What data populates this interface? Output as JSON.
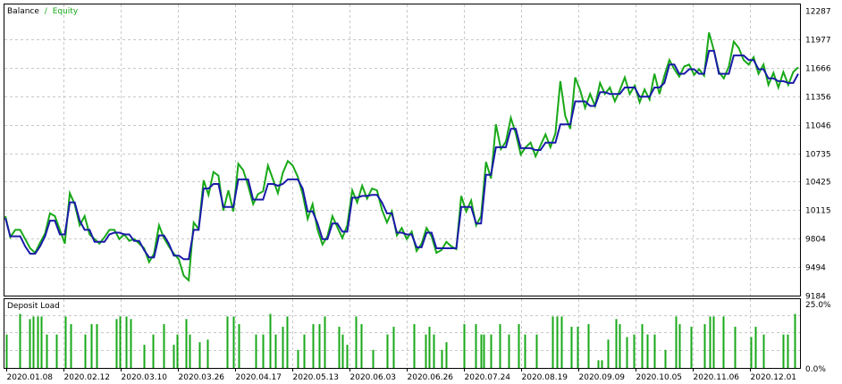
{
  "colors": {
    "balance": "#1a1aa8",
    "equity": "#18a818",
    "load": "#18a818",
    "grid": "#c8c8c8",
    "frame": "#000000",
    "text": "#000000"
  },
  "legend": {
    "balance_label": "Balance",
    "separator": "/",
    "equity_label": "Equity"
  },
  "load_panel": {
    "title": "Deposit Load",
    "ymax_label": "25.0%",
    "ymin_label": "0.0%"
  },
  "x_tick_labels": [
    "2020.01.08",
    "2020.02.12",
    "2020.03.10",
    "2020.03.26",
    "2020.04.17",
    "2020.05.13",
    "2020.06.03",
    "2020.06.26",
    "2020.07.24",
    "2020.08.19",
    "2020.09.09",
    "2020.10.05",
    "2020.11.06",
    "2020.12.01"
  ],
  "chart_data": [
    {
      "type": "line",
      "title": "Balance / Equity",
      "y_ticks": [
        12287,
        11977,
        11666,
        11356,
        11046,
        10735,
        10425,
        10115,
        9804,
        9494,
        9184
      ],
      "ylim": [
        9184,
        12287
      ],
      "grid": true,
      "legend": "top-left",
      "series": [
        {
          "name": "Balance",
          "values": [
            10030,
            9830,
            9830,
            9830,
            9720,
            9640,
            9640,
            9720,
            9830,
            10000,
            10000,
            9850,
            9850,
            10200,
            10200,
            10000,
            9900,
            9900,
            9770,
            9770,
            9770,
            9850,
            9870,
            9870,
            9850,
            9850,
            9780,
            9780,
            9680,
            9600,
            9600,
            9840,
            9840,
            9750,
            9620,
            9620,
            9580,
            9580,
            9900,
            9900,
            10350,
            10350,
            10400,
            10400,
            10150,
            10150,
            10150,
            10450,
            10450,
            10450,
            10230,
            10230,
            10230,
            10400,
            10400,
            10380,
            10400,
            10450,
            10450,
            10450,
            10350,
            10100,
            10100,
            9970,
            9800,
            9800,
            9970,
            9970,
            9880,
            9880,
            10250,
            10250,
            10270,
            10270,
            10280,
            10280,
            10200,
            10080,
            10080,
            9870,
            9870,
            9850,
            9850,
            9710,
            9710,
            9870,
            9870,
            9700,
            9700,
            9700,
            9700,
            9700,
            10150,
            10150,
            10150,
            9970,
            9970,
            10500,
            10500,
            10800,
            10800,
            10800,
            11000,
            11000,
            10790,
            10790,
            10790,
            10770,
            10770,
            10850,
            10850,
            10850,
            11050,
            11050,
            11050,
            11300,
            11300,
            11300,
            11250,
            11250,
            11400,
            11400,
            11380,
            11380,
            11380,
            11450,
            11450,
            11450,
            11350,
            11350,
            11350,
            11450,
            11450,
            11500,
            11700,
            11700,
            11600,
            11600,
            11650,
            11650,
            11600,
            11600,
            11850,
            11850,
            11600,
            11600,
            11600,
            11800,
            11800,
            11800,
            11750,
            11750,
            11650,
            11650,
            11550,
            11550,
            11520,
            11520,
            11500,
            11500,
            11600
          ]
        },
        {
          "name": "Equity",
          "values": [
            10050,
            9820,
            9900,
            9900,
            9800,
            9700,
            9650,
            9760,
            9860,
            10080,
            10050,
            9900,
            9750,
            10300,
            10180,
            9950,
            10050,
            9850,
            9800,
            9750,
            9820,
            9900,
            9900,
            9800,
            9850,
            9780,
            9800,
            9750,
            9700,
            9550,
            9640,
            9950,
            9810,
            9720,
            9640,
            9580,
            9400,
            9350,
            9980,
            9910,
            10440,
            10280,
            10530,
            10490,
            10110,
            10330,
            10100,
            10620,
            10550,
            10380,
            10180,
            10290,
            10320,
            10600,
            10450,
            10300,
            10520,
            10650,
            10600,
            10480,
            10290,
            10020,
            10180,
            9900,
            9740,
            9830,
            10050,
            9930,
            9810,
            9950,
            10330,
            10200,
            10380,
            10240,
            10350,
            10330,
            10120,
            9980,
            10100,
            9840,
            9920,
            9800,
            9880,
            9670,
            9750,
            9920,
            9830,
            9650,
            9680,
            9770,
            9720,
            9690,
            10270,
            10100,
            10220,
            9950,
            10050,
            10640,
            10460,
            11050,
            10780,
            10860,
            11120,
            10950,
            10720,
            10800,
            10850,
            10700,
            10820,
            10940,
            10800,
            10950,
            11520,
            11140,
            11000,
            11560,
            11420,
            11230,
            11380,
            11250,
            11500,
            11380,
            11450,
            11300,
            11420,
            11560,
            11380,
            11470,
            11290,
            11430,
            11320,
            11600,
            11380,
            11580,
            11750,
            11650,
            11570,
            11680,
            11700,
            11590,
            11650,
            11580,
            12050,
            11850,
            11620,
            11550,
            11680,
            11950,
            11880,
            11750,
            11700,
            11780,
            11600,
            11700,
            11480,
            11610,
            11450,
            11620,
            11480,
            11620,
            11670
          ]
        }
      ]
    },
    {
      "type": "bar",
      "title": "Deposit Load",
      "y_ticks_label": [
        "0.0%",
        "25.0%"
      ],
      "ylim": [
        0,
        25
      ],
      "bars": [
        {
          "t": 0.001,
          "v": 13
        },
        {
          "t": 0.018,
          "v": 21
        },
        {
          "t": 0.03,
          "v": 19
        },
        {
          "t": 0.035,
          "v": 20
        },
        {
          "t": 0.041,
          "v": 20
        },
        {
          "t": 0.045,
          "v": 20
        },
        {
          "t": 0.052,
          "v": 13
        },
        {
          "t": 0.064,
          "v": 13
        },
        {
          "t": 0.075,
          "v": 20
        },
        {
          "t": 0.082,
          "v": 17
        },
        {
          "t": 0.1,
          "v": 13
        },
        {
          "t": 0.108,
          "v": 17
        },
        {
          "t": 0.115,
          "v": 17
        },
        {
          "t": 0.14,
          "v": 19
        },
        {
          "t": 0.144,
          "v": 20
        },
        {
          "t": 0.152,
          "v": 20
        },
        {
          "t": 0.158,
          "v": 19
        },
        {
          "t": 0.175,
          "v": 9
        },
        {
          "t": 0.186,
          "v": 13
        },
        {
          "t": 0.2,
          "v": 17
        },
        {
          "t": 0.212,
          "v": 9
        },
        {
          "t": 0.217,
          "v": 13
        },
        {
          "t": 0.228,
          "v": 19
        },
        {
          "t": 0.232,
          "v": 13
        },
        {
          "t": 0.245,
          "v": 10
        },
        {
          "t": 0.255,
          "v": 11
        },
        {
          "t": 0.28,
          "v": 20
        },
        {
          "t": 0.287,
          "v": 20
        },
        {
          "t": 0.294,
          "v": 17
        },
        {
          "t": 0.316,
          "v": 13
        },
        {
          "t": 0.325,
          "v": 13
        },
        {
          "t": 0.334,
          "v": 21
        },
        {
          "t": 0.341,
          "v": 13
        },
        {
          "t": 0.35,
          "v": 16
        },
        {
          "t": 0.355,
          "v": 20
        },
        {
          "t": 0.369,
          "v": 7
        },
        {
          "t": 0.377,
          "v": 13
        },
        {
          "t": 0.388,
          "v": 17
        },
        {
          "t": 0.396,
          "v": 17
        },
        {
          "t": 0.403,
          "v": 20
        },
        {
          "t": 0.42,
          "v": 16
        },
        {
          "t": 0.425,
          "v": 13
        },
        {
          "t": 0.431,
          "v": 9
        },
        {
          "t": 0.442,
          "v": 20
        },
        {
          "t": 0.449,
          "v": 17
        },
        {
          "t": 0.463,
          "v": 7
        },
        {
          "t": 0.481,
          "v": 13
        },
        {
          "t": 0.489,
          "v": 16
        },
        {
          "t": 0.515,
          "v": 17
        },
        {
          "t": 0.53,
          "v": 13
        },
        {
          "t": 0.534,
          "v": 16
        },
        {
          "t": 0.54,
          "v": 13
        },
        {
          "t": 0.55,
          "v": 7
        },
        {
          "t": 0.556,
          "v": 10
        },
        {
          "t": 0.578,
          "v": 17
        },
        {
          "t": 0.593,
          "v": 17
        },
        {
          "t": 0.6,
          "v": 13
        },
        {
          "t": 0.603,
          "v": 13
        },
        {
          "t": 0.612,
          "v": 13
        },
        {
          "t": 0.623,
          "v": 17
        },
        {
          "t": 0.635,
          "v": 13
        },
        {
          "t": 0.647,
          "v": 17
        },
        {
          "t": 0.655,
          "v": 13
        },
        {
          "t": 0.67,
          "v": 13
        },
        {
          "t": 0.69,
          "v": 20
        },
        {
          "t": 0.696,
          "v": 20
        },
        {
          "t": 0.701,
          "v": 20
        },
        {
          "t": 0.714,
          "v": 16
        },
        {
          "t": 0.722,
          "v": 16
        },
        {
          "t": 0.735,
          "v": 17
        },
        {
          "t": 0.747,
          "v": 3
        },
        {
          "t": 0.752,
          "v": 3
        },
        {
          "t": 0.76,
          "v": 11
        },
        {
          "t": 0.77,
          "v": 19
        },
        {
          "t": 0.775,
          "v": 17
        },
        {
          "t": 0.784,
          "v": 12
        },
        {
          "t": 0.792,
          "v": 13
        },
        {
          "t": 0.803,
          "v": 17
        },
        {
          "t": 0.809,
          "v": 13
        },
        {
          "t": 0.818,
          "v": 13
        },
        {
          "t": 0.832,
          "v": 7
        },
        {
          "t": 0.845,
          "v": 20
        },
        {
          "t": 0.85,
          "v": 17
        },
        {
          "t": 0.865,
          "v": 16
        },
        {
          "t": 0.882,
          "v": 17
        },
        {
          "t": 0.888,
          "v": 20
        },
        {
          "t": 0.893,
          "v": 20
        },
        {
          "t": 0.905,
          "v": 20
        },
        {
          "t": 0.92,
          "v": 16
        },
        {
          "t": 0.94,
          "v": 12
        },
        {
          "t": 0.946,
          "v": 16
        },
        {
          "t": 0.956,
          "v": 13
        },
        {
          "t": 0.981,
          "v": 13
        },
        {
          "t": 0.986,
          "v": 13
        },
        {
          "t": 0.996,
          "v": 21
        }
      ]
    }
  ]
}
